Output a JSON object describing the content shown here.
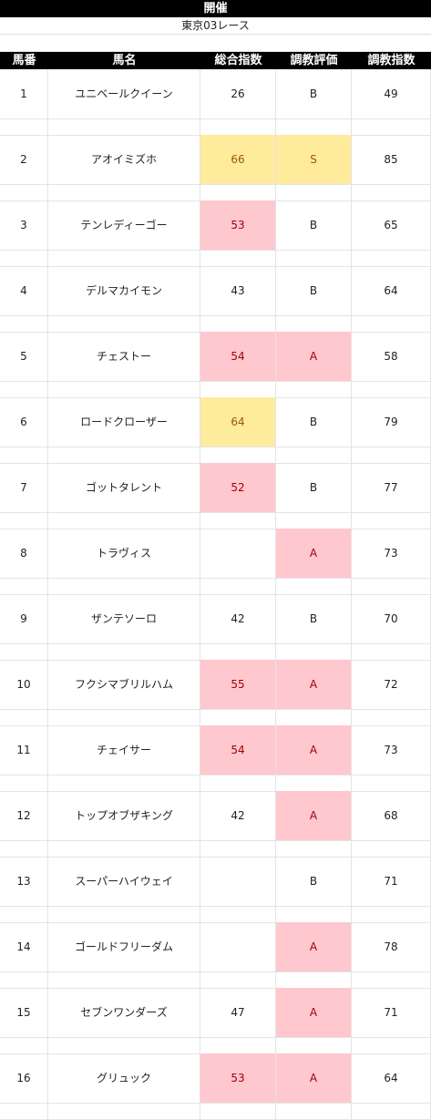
{
  "sheet": {
    "title": "開催",
    "race": "東京03レース",
    "headers": {
      "num": "馬番",
      "name": "馬名",
      "total": "総合指数",
      "eval": "調教評価",
      "train": "調教指数"
    },
    "highlight_colors": {
      "pink_fill": "#ffc7ce",
      "pink_text": "#9c0006",
      "yellow_fill": "#ffeb9c",
      "yellow_text": "#9c5700"
    },
    "rows": [
      {
        "num": "1",
        "name": "ユニベールクイーン",
        "total": "26",
        "eval": "B",
        "train": "49",
        "total_hl": "",
        "eval_hl": ""
      },
      {
        "num": "2",
        "name": "アオイミズホ",
        "total": "66",
        "eval": "S",
        "train": "85",
        "total_hl": "yellow",
        "eval_hl": "yellow"
      },
      {
        "num": "3",
        "name": "テンレディーゴー",
        "total": "53",
        "eval": "B",
        "train": "65",
        "total_hl": "pink",
        "eval_hl": ""
      },
      {
        "num": "4",
        "name": "デルマカイモン",
        "total": "43",
        "eval": "B",
        "train": "64",
        "total_hl": "",
        "eval_hl": ""
      },
      {
        "num": "5",
        "name": "チェストー",
        "total": "54",
        "eval": "A",
        "train": "58",
        "total_hl": "pink",
        "eval_hl": "pink"
      },
      {
        "num": "6",
        "name": "ロードクローザー",
        "total": "64",
        "eval": "B",
        "train": "79",
        "total_hl": "yellow",
        "eval_hl": ""
      },
      {
        "num": "7",
        "name": "ゴットタレント",
        "total": "52",
        "eval": "B",
        "train": "77",
        "total_hl": "pink",
        "eval_hl": ""
      },
      {
        "num": "8",
        "name": "トラヴィス",
        "total": "",
        "eval": "A",
        "train": "73",
        "total_hl": "",
        "eval_hl": "pink"
      },
      {
        "num": "9",
        "name": "ザンテソーロ",
        "total": "42",
        "eval": "B",
        "train": "70",
        "total_hl": "",
        "eval_hl": ""
      },
      {
        "num": "10",
        "name": "フクシマブリルハム",
        "total": "55",
        "eval": "A",
        "train": "72",
        "total_hl": "pink",
        "eval_hl": "pink"
      },
      {
        "num": "11",
        "name": "チェイサー",
        "total": "54",
        "eval": "A",
        "train": "73",
        "total_hl": "pink",
        "eval_hl": "pink"
      },
      {
        "num": "12",
        "name": "トップオブザキング",
        "total": "42",
        "eval": "A",
        "train": "68",
        "total_hl": "",
        "eval_hl": "pink"
      },
      {
        "num": "13",
        "name": "スーパーハイウェイ",
        "total": "",
        "eval": "B",
        "train": "71",
        "total_hl": "",
        "eval_hl": ""
      },
      {
        "num": "14",
        "name": "ゴールドフリーダム",
        "total": "",
        "eval": "A",
        "train": "78",
        "total_hl": "",
        "eval_hl": "pink"
      },
      {
        "num": "15",
        "name": "セブンワンダーズ",
        "total": "47",
        "eval": "A",
        "train": "71",
        "total_hl": "",
        "eval_hl": "pink"
      },
      {
        "num": "16",
        "name": "グリュック",
        "total": "53",
        "eval": "A",
        "train": "64",
        "total_hl": "pink",
        "eval_hl": "pink"
      }
    ]
  }
}
